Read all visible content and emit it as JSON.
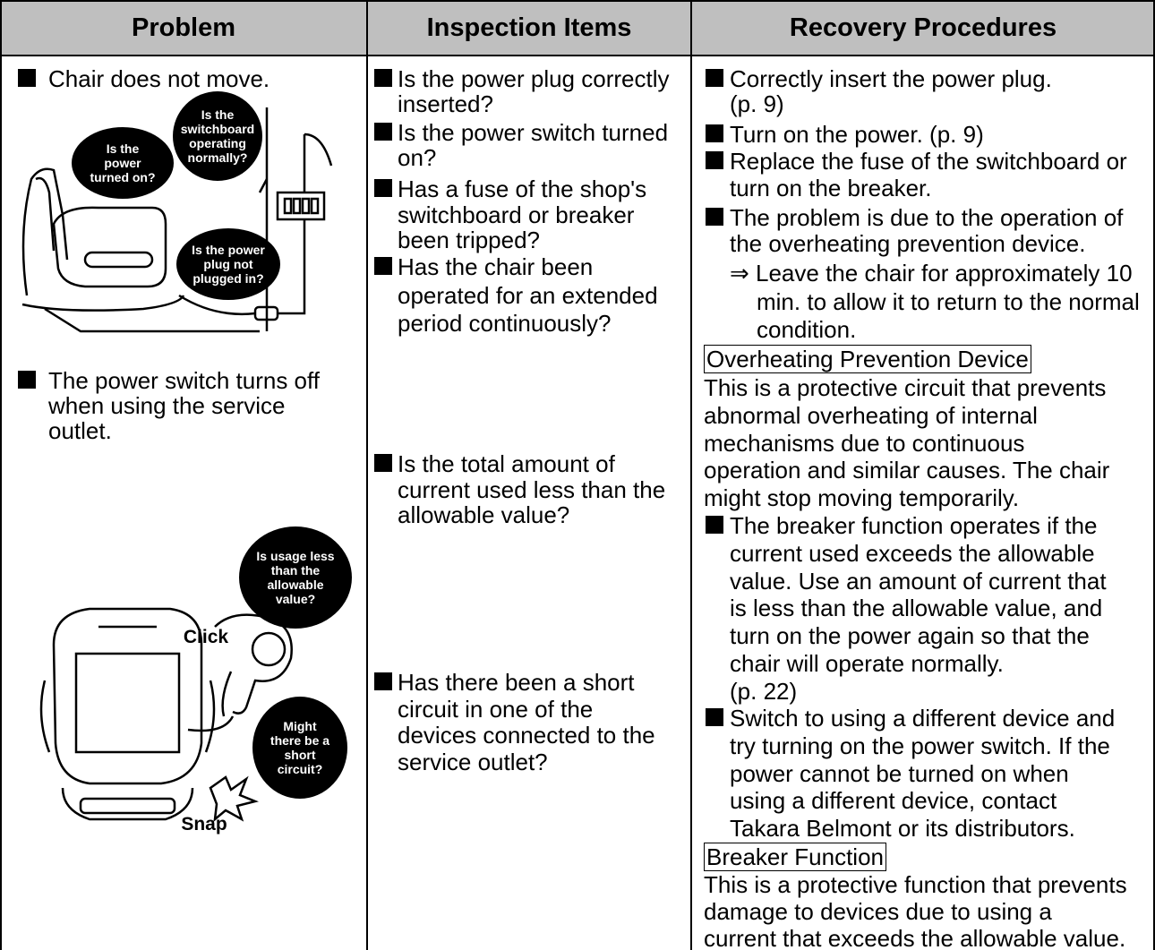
{
  "columns": [
    {
      "header": "Problem",
      "items": [
        {
          "style": "bullet",
          "lines": [
            "Chair does not move."
          ]
        },
        {
          "style": "bullet",
          "lines": [
            "The power switch turns off",
            "when using the service",
            "outlet."
          ]
        }
      ]
    },
    {
      "header": "Inspection Items",
      "items": [
        {
          "style": "bullet",
          "lines": [
            "Is the power plug correctly",
            "inserted?"
          ]
        },
        {
          "style": "bullet",
          "lines": [
            "Is the power switch turned",
            "on?"
          ]
        },
        {
          "style": "bullet",
          "lines": [
            "Has a fuse of the shop's",
            "switchboard or breaker",
            "been tripped?"
          ]
        },
        {
          "style": "bullet",
          "lines": [
            "Has the chair been",
            "operated for an extended",
            "period continuously?"
          ]
        },
        {
          "style": "bullet",
          "lines": [
            "Is the total amount of",
            "current used less than the",
            "allowable value?"
          ]
        },
        {
          "style": "bullet",
          "lines": [
            "Has there been a short",
            "circuit in one of the",
            "devices connected to the",
            "service outlet?"
          ]
        }
      ]
    },
    {
      "header": "Recovery Procedures",
      "items": [
        {
          "style": "bullet",
          "lines": [
            "Correctly insert the power plug.",
            "(p. 9)"
          ]
        },
        {
          "style": "bullet",
          "lines": [
            "Turn on the power. (p. 9)"
          ]
        },
        {
          "style": "bullet",
          "lines": [
            "Replace the fuse of the switchboard or",
            "turn on the breaker."
          ]
        },
        {
          "style": "bullet",
          "lines": [
            "The problem is due to the operation of",
            "the overheating prevention device."
          ]
        },
        {
          "style": "arrow",
          "lines": [
            "⇒ Leave the chair for approximately 10",
            "min. to allow it to return to the normal",
            "condition."
          ]
        },
        {
          "style": "boxed",
          "lines": [
            "Overheating Prevention Device"
          ]
        },
        {
          "style": "plain",
          "lines": [
            "This is a protective circuit that prevents",
            "abnormal overheating of internal",
            "mechanisms due to continuous",
            "operation and similar causes. The chair",
            "might stop moving temporarily."
          ]
        },
        {
          "style": "bullet",
          "lines": [
            "The breaker function operates if the",
            "current used exceeds the allowable",
            "value. Use an amount of current that",
            "is less than the allowable value, and",
            "turn on the power again so that the",
            "chair will operate normally.",
            "(p. 22)"
          ]
        },
        {
          "style": "bullet",
          "lines": [
            "Switch to using a different device and",
            "try turning on the power switch. If the",
            "power cannot be turned on when",
            "using a different device, contact",
            "Takara Belmont or its distributors."
          ]
        },
        {
          "style": "boxed",
          "lines": [
            "Breaker Function"
          ]
        },
        {
          "style": "plain",
          "lines": [
            "This is a protective function that prevents",
            "damage to devices due to using a",
            "current that exceeds the allowable value."
          ]
        }
      ]
    }
  ],
  "illustrations": [
    {
      "callouts": [
        {
          "lines": [
            "Is the",
            "power",
            "turned on?"
          ]
        },
        {
          "lines": [
            "Is the",
            "switchboard",
            "operating",
            "normally?"
          ]
        },
        {
          "lines": [
            "Is the power",
            "plug not",
            "plugged in?"
          ]
        }
      ],
      "labels": []
    },
    {
      "callouts": [
        {
          "lines": [
            "Is usage less",
            "than the",
            "allowable",
            "value?"
          ]
        },
        {
          "lines": [
            "Might",
            "there be a",
            "short",
            "circuit?"
          ]
        }
      ],
      "labels": [
        "Click",
        "Snap"
      ]
    }
  ]
}
